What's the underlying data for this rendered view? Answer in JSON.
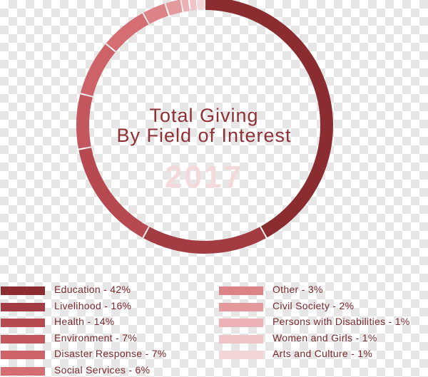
{
  "chart_data": {
    "type": "pie",
    "title": "Total Giving",
    "subtitle": "By Field of Interest",
    "year": "2017",
    "categories": [
      "Education",
      "Livelihood",
      "Health",
      "Environment",
      "Disaster Response",
      "Social Services",
      "Other",
      "Civil Society",
      "Persons with Disabilities",
      "Women and Girls",
      "Arts and Culture"
    ],
    "values": [
      42,
      16,
      14,
      7,
      7,
      6,
      3,
      2,
      1,
      1,
      1
    ],
    "labels": [
      "Education - 42%",
      "Livelihood - 16%",
      "Health - 14%",
      "Environment - 7%",
      "Disaster Response - 7%",
      "Social Services - 6%",
      "Other - 3%",
      "Civil Society - 2%",
      "Persons with Disabilities - 1%",
      "Women and Girls - 1%",
      "Arts and Culture - 1%"
    ],
    "colors": [
      "#8a2c30",
      "#a33c42",
      "#b64a50",
      "#c3575d",
      "#cd6369",
      "#d46e73",
      "#dc8387",
      "#e49a9d",
      "#ebb1b4",
      "#f0c4c6",
      "#f4d5d6"
    ],
    "legend": "bottom"
  }
}
